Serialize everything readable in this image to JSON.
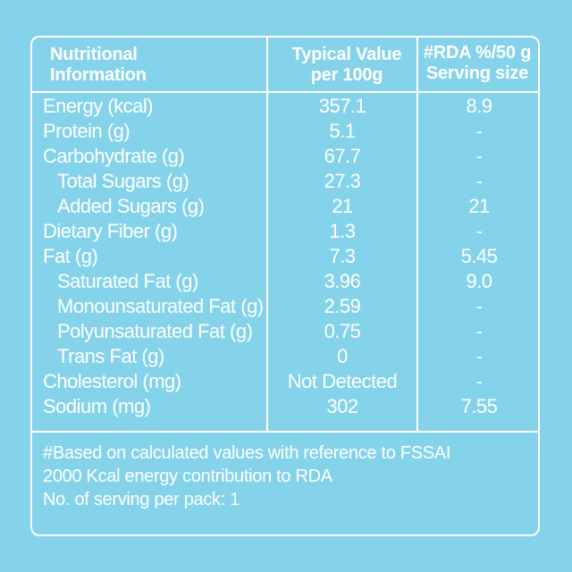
{
  "header": {
    "nutrient_line1": "Nutritional",
    "nutrient_line2": "Information",
    "typical_line1": "Typical Value",
    "typical_line2": "per 100g",
    "rda_line1": "#RDA %/50 g",
    "rda_line2": "Serving size"
  },
  "rows": [
    {
      "name": "Energy (kcal)",
      "value": "357.1",
      "rda": "8.9"
    },
    {
      "name": "Protein (g)",
      "value": "5.1",
      "rda": "-"
    },
    {
      "name": "Carbohydrate (g)",
      "value": "67.7",
      "rda": "-"
    },
    {
      "name": "Total Sugars (g)",
      "value": "27.3",
      "rda": "-"
    },
    {
      "name": "Added Sugars (g)",
      "value": "21",
      "rda": "21"
    },
    {
      "name": "Dietary Fiber (g)",
      "value": "1.3",
      "rda": "-"
    },
    {
      "name": "Fat (g)",
      "value": "7.3",
      "rda": "5.45"
    },
    {
      "name": "Saturated Fat (g)",
      "value": "3.96",
      "rda": "9.0"
    },
    {
      "name": "Monounsaturated Fat (g)",
      "value": "2.59",
      "rda": "-"
    },
    {
      "name": "Polyunsaturated Fat (g)",
      "value": "0.75",
      "rda": "-"
    },
    {
      "name": "Trans Fat (g)",
      "value": "0",
      "rda": "-"
    },
    {
      "name": "Cholesterol (mg)",
      "value": "Not Detected",
      "rda": "-"
    },
    {
      "name": "Sodium (mg)",
      "value": "302",
      "rda": "7.55"
    }
  ],
  "notes": {
    "line1": "#Based on calculated values with reference to FSSAI",
    "line2": "2000 Kcal energy contribution to RDA",
    "line3": "No. of serving per pack: 1"
  },
  "colors": {
    "background": "#84d3ea",
    "text": "#ffffff",
    "border": "#ffffff"
  }
}
